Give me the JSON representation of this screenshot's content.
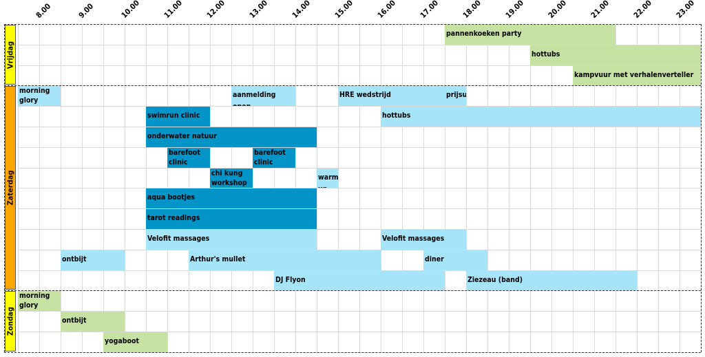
{
  "hours": [
    "8.00",
    "9.00",
    "10.00",
    "11.00",
    "12.00",
    "13.00",
    "14.00",
    "15.00",
    "16.00",
    "17.00",
    "18.00",
    "19.00",
    "20.00",
    "21.00",
    "22.00",
    "23.00"
  ],
  "colors": {
    "friday_label": "#ffff00",
    "saturday_label": "#ffa500",
    "sunday_label": "#ffff00",
    "green": "#c6e2a2",
    "light_blue": "#a6e4fa",
    "dark_blue": "#0394c8"
  },
  "days": [
    {
      "name": "Vrijdag",
      "color": "friday_label"
    },
    {
      "name": "Zaterdag",
      "color": "saturday_label"
    },
    {
      "name": "Zondag",
      "color": "sunday_label"
    }
  ],
  "events": [
    {
      "id": "pannenkoeken",
      "label": "pannenkoeken party",
      "start": 17.5,
      "end": 21.5,
      "color": "green"
    },
    {
      "id": "hottubs-vr",
      "label": "hottubs",
      "start": 19.5,
      "end": 23.5,
      "color": "green"
    },
    {
      "id": "kampvuur",
      "label": "kampvuur met verhalenverteller",
      "start": 20.5,
      "end": 23.5,
      "color": "green"
    },
    {
      "id": "morning-glory-za",
      "label": "morning glory swim",
      "start": 7.5,
      "end": 8.5,
      "color": "light_blue"
    },
    {
      "id": "aanmelding",
      "label": "aanmelding open",
      "start": 12.5,
      "end": 14.0,
      "color": "light_blue"
    },
    {
      "id": "hre",
      "label": "HRE wedstrijd",
      "start": 15.0,
      "end": 17.5,
      "color": "light_blue"
    },
    {
      "id": "prijsuitreiking",
      "label": "prijsuitreiking",
      "start": 17.5,
      "end": 18.0,
      "color": "light_blue"
    },
    {
      "id": "swimrun",
      "label": "swimrun clinic",
      "start": 10.5,
      "end": 12.0,
      "color": "dark_blue"
    },
    {
      "id": "hottubs-za",
      "label": "hottubs",
      "start": 16.0,
      "end": 23.5,
      "color": "light_blue"
    },
    {
      "id": "onderwater",
      "label": "onderwater natuur",
      "start": 10.5,
      "end": 14.5,
      "color": "dark_blue"
    },
    {
      "id": "barefoot1",
      "label": "barefoot clinic",
      "start": 11.0,
      "end": 12.0,
      "color": "dark_blue"
    },
    {
      "id": "barefoot2",
      "label": "barefoot clinic",
      "start": 13.0,
      "end": 14.0,
      "color": "dark_blue"
    },
    {
      "id": "chikung",
      "label": "chi kung workshop",
      "start": 12.0,
      "end": 13.0,
      "color": "dark_blue"
    },
    {
      "id": "warmingup",
      "label": "warming up",
      "start": 14.5,
      "end": 15.0,
      "color": "light_blue"
    },
    {
      "id": "aqua",
      "label": "aqua bootjes",
      "start": 10.5,
      "end": 14.5,
      "color": "dark_blue"
    },
    {
      "id": "tarot",
      "label": "tarot readings",
      "start": 10.5,
      "end": 14.5,
      "color": "dark_blue"
    },
    {
      "id": "velofit1",
      "label": "Velofit massages",
      "start": 10.5,
      "end": 14.5,
      "color": "light_blue"
    },
    {
      "id": "velofit2",
      "label": "Velofit massages",
      "start": 16.0,
      "end": 18.0,
      "color": "light_blue"
    },
    {
      "id": "ontbijt-za",
      "label": "ontbijt",
      "start": 8.5,
      "end": 10.0,
      "color": "light_blue"
    },
    {
      "id": "arthur",
      "label": "Arthur's mullet",
      "start": 11.5,
      "end": 16.0,
      "color": "light_blue"
    },
    {
      "id": "diner",
      "label": "diner",
      "start": 17.0,
      "end": 18.5,
      "color": "light_blue"
    },
    {
      "id": "djflyon",
      "label": "DJ Flyon",
      "start": 13.5,
      "end": 17.5,
      "color": "light_blue"
    },
    {
      "id": "ziezeau",
      "label": "Ziezeau (band)",
      "start": 18.0,
      "end": 22.0,
      "color": "light_blue"
    },
    {
      "id": "morning-glory-zo",
      "label": "morning glory swim",
      "start": 7.5,
      "end": 8.5,
      "color": "green"
    },
    {
      "id": "ontbijt-zo",
      "label": "ontbijt",
      "start": 8.5,
      "end": 10.0,
      "color": "green"
    },
    {
      "id": "yogaboot",
      "label": "yogaboot",
      "start": 9.5,
      "end": 11.0,
      "color": "green"
    }
  ]
}
